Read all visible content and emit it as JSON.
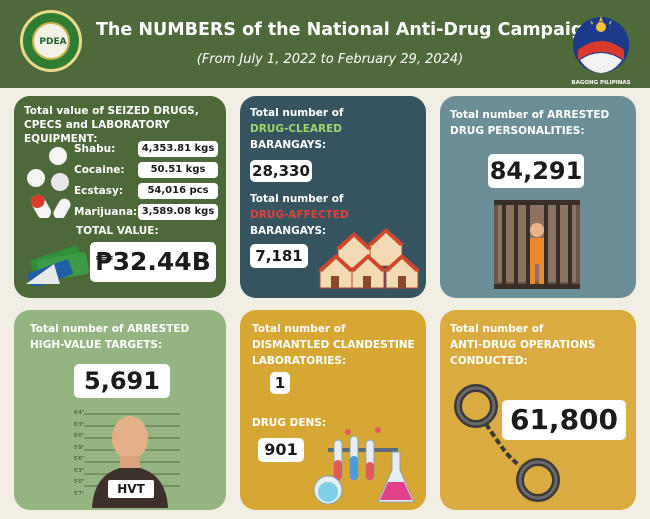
{
  "header": {
    "title": "The NUMBERS of the National Anti-Drug Campaign",
    "subtitle": "(From July 1, 2022 to February 29, 2024)",
    "logo_left_text": "PDEA",
    "logo_right_caption": "BAGONG PILIPINAS"
  },
  "seized": {
    "label": "Total value of SEIZED DRUGS, CPECS and LABORATORY EQUIPMENT:",
    "items": [
      {
        "name": "Shabu:",
        "value": "4,353.81 kgs"
      },
      {
        "name": "Cocaine:",
        "value": "50.51  kgs"
      },
      {
        "name": "Ecstasy:",
        "value": "54,016 pcs"
      },
      {
        "name": "Marijuana:",
        "value": "3,589.08 kgs"
      }
    ],
    "total_label": "TOTAL VALUE:",
    "total_value": "₱32.44B"
  },
  "barangays": {
    "cleared_prefix": "Total number of",
    "cleared_highlight": "DRUG-CLEARED",
    "cleared_suffix": "BARANGAYS:",
    "cleared_value": "28,330",
    "affected_prefix": "Total number of",
    "affected_highlight": "DRUG-AFFECTED",
    "affected_suffix": "BARANGAYS:",
    "affected_value": "7,181",
    "colors": {
      "cleared": "#9fd66b",
      "affected": "#e0413a"
    }
  },
  "arrested": {
    "label_line1": "Total number of ARRESTED",
    "label_line2": "DRUG PERSONALITIES:",
    "value": "84,291"
  },
  "hvt": {
    "label_line1": "Total number of ARRESTED",
    "label_line2": "HIGH-VALUE TARGETS:",
    "value": "5,691",
    "badge": "HVT",
    "height_marks": [
      "6'4\"",
      "6'3\"",
      "6'0\"",
      "5'9\"",
      "5'6\"",
      "5'3\"",
      "5'0\"",
      "5'7\""
    ]
  },
  "labs": {
    "label_line1": "Total number of",
    "label_line2": "DISMANTLED CLANDESTINE",
    "label_line3": "LABORATORIES:",
    "value": "1",
    "dens_label": "DRUG DENS:",
    "dens_value": "901"
  },
  "operations": {
    "label_line1": "Total number of",
    "label_line2": "ANTI-DRUG OPERATIONS",
    "label_line3": "CONDUCTED:",
    "value": "61,800"
  }
}
